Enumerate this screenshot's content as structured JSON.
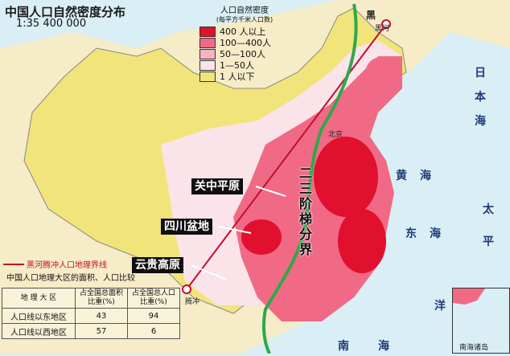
{
  "map": {
    "title": "中国人口自然密度分布",
    "scale": "1:35 400 000",
    "legend": {
      "title": "人口自然密度",
      "unit": "(每平方千米人口数)",
      "items": [
        {
          "label": "400 人以上",
          "color": "#e0102e"
        },
        {
          "label": "100—400人",
          "color": "#f06a86"
        },
        {
          "label": "50—100人",
          "color": "#f7b3c4"
        },
        {
          "label": "1—50人",
          "color": "#fbe3ea"
        },
        {
          "label": "1 人以下",
          "color": "#f1e47a"
        }
      ]
    },
    "callouts": [
      "关中平原",
      "四川盆地",
      "云贵高原"
    ],
    "boundary_label": [
      "二",
      "三",
      "阶",
      "梯",
      "分",
      "界"
    ],
    "line_legend": "黑河腾冲人口地理界线",
    "cities": {
      "heihe_short": "黑",
      "heihe": "黑河",
      "beijing": "北京",
      "tengchong": "腾冲"
    },
    "seas": [
      "日",
      "本",
      "海",
      "黄",
      "海",
      "东",
      "海",
      "太",
      "平",
      "洋",
      "南",
      "海"
    ],
    "table": {
      "title": "中国人口地理大区的面积、人口比较",
      "headers": [
        "地 理 大 区",
        "占全国总面积比重(%)",
        "占全国总人口比重(%)"
      ],
      "rows": [
        [
          "人口线以东地区",
          "43",
          "94"
        ],
        [
          "人口线以西地区",
          "57",
          "6"
        ]
      ]
    },
    "inset_label": "南海诸岛",
    "colors": {
      "green_line": "#2fa84a",
      "red_line": "#c0102c",
      "sea": "#d9eef5"
    }
  }
}
